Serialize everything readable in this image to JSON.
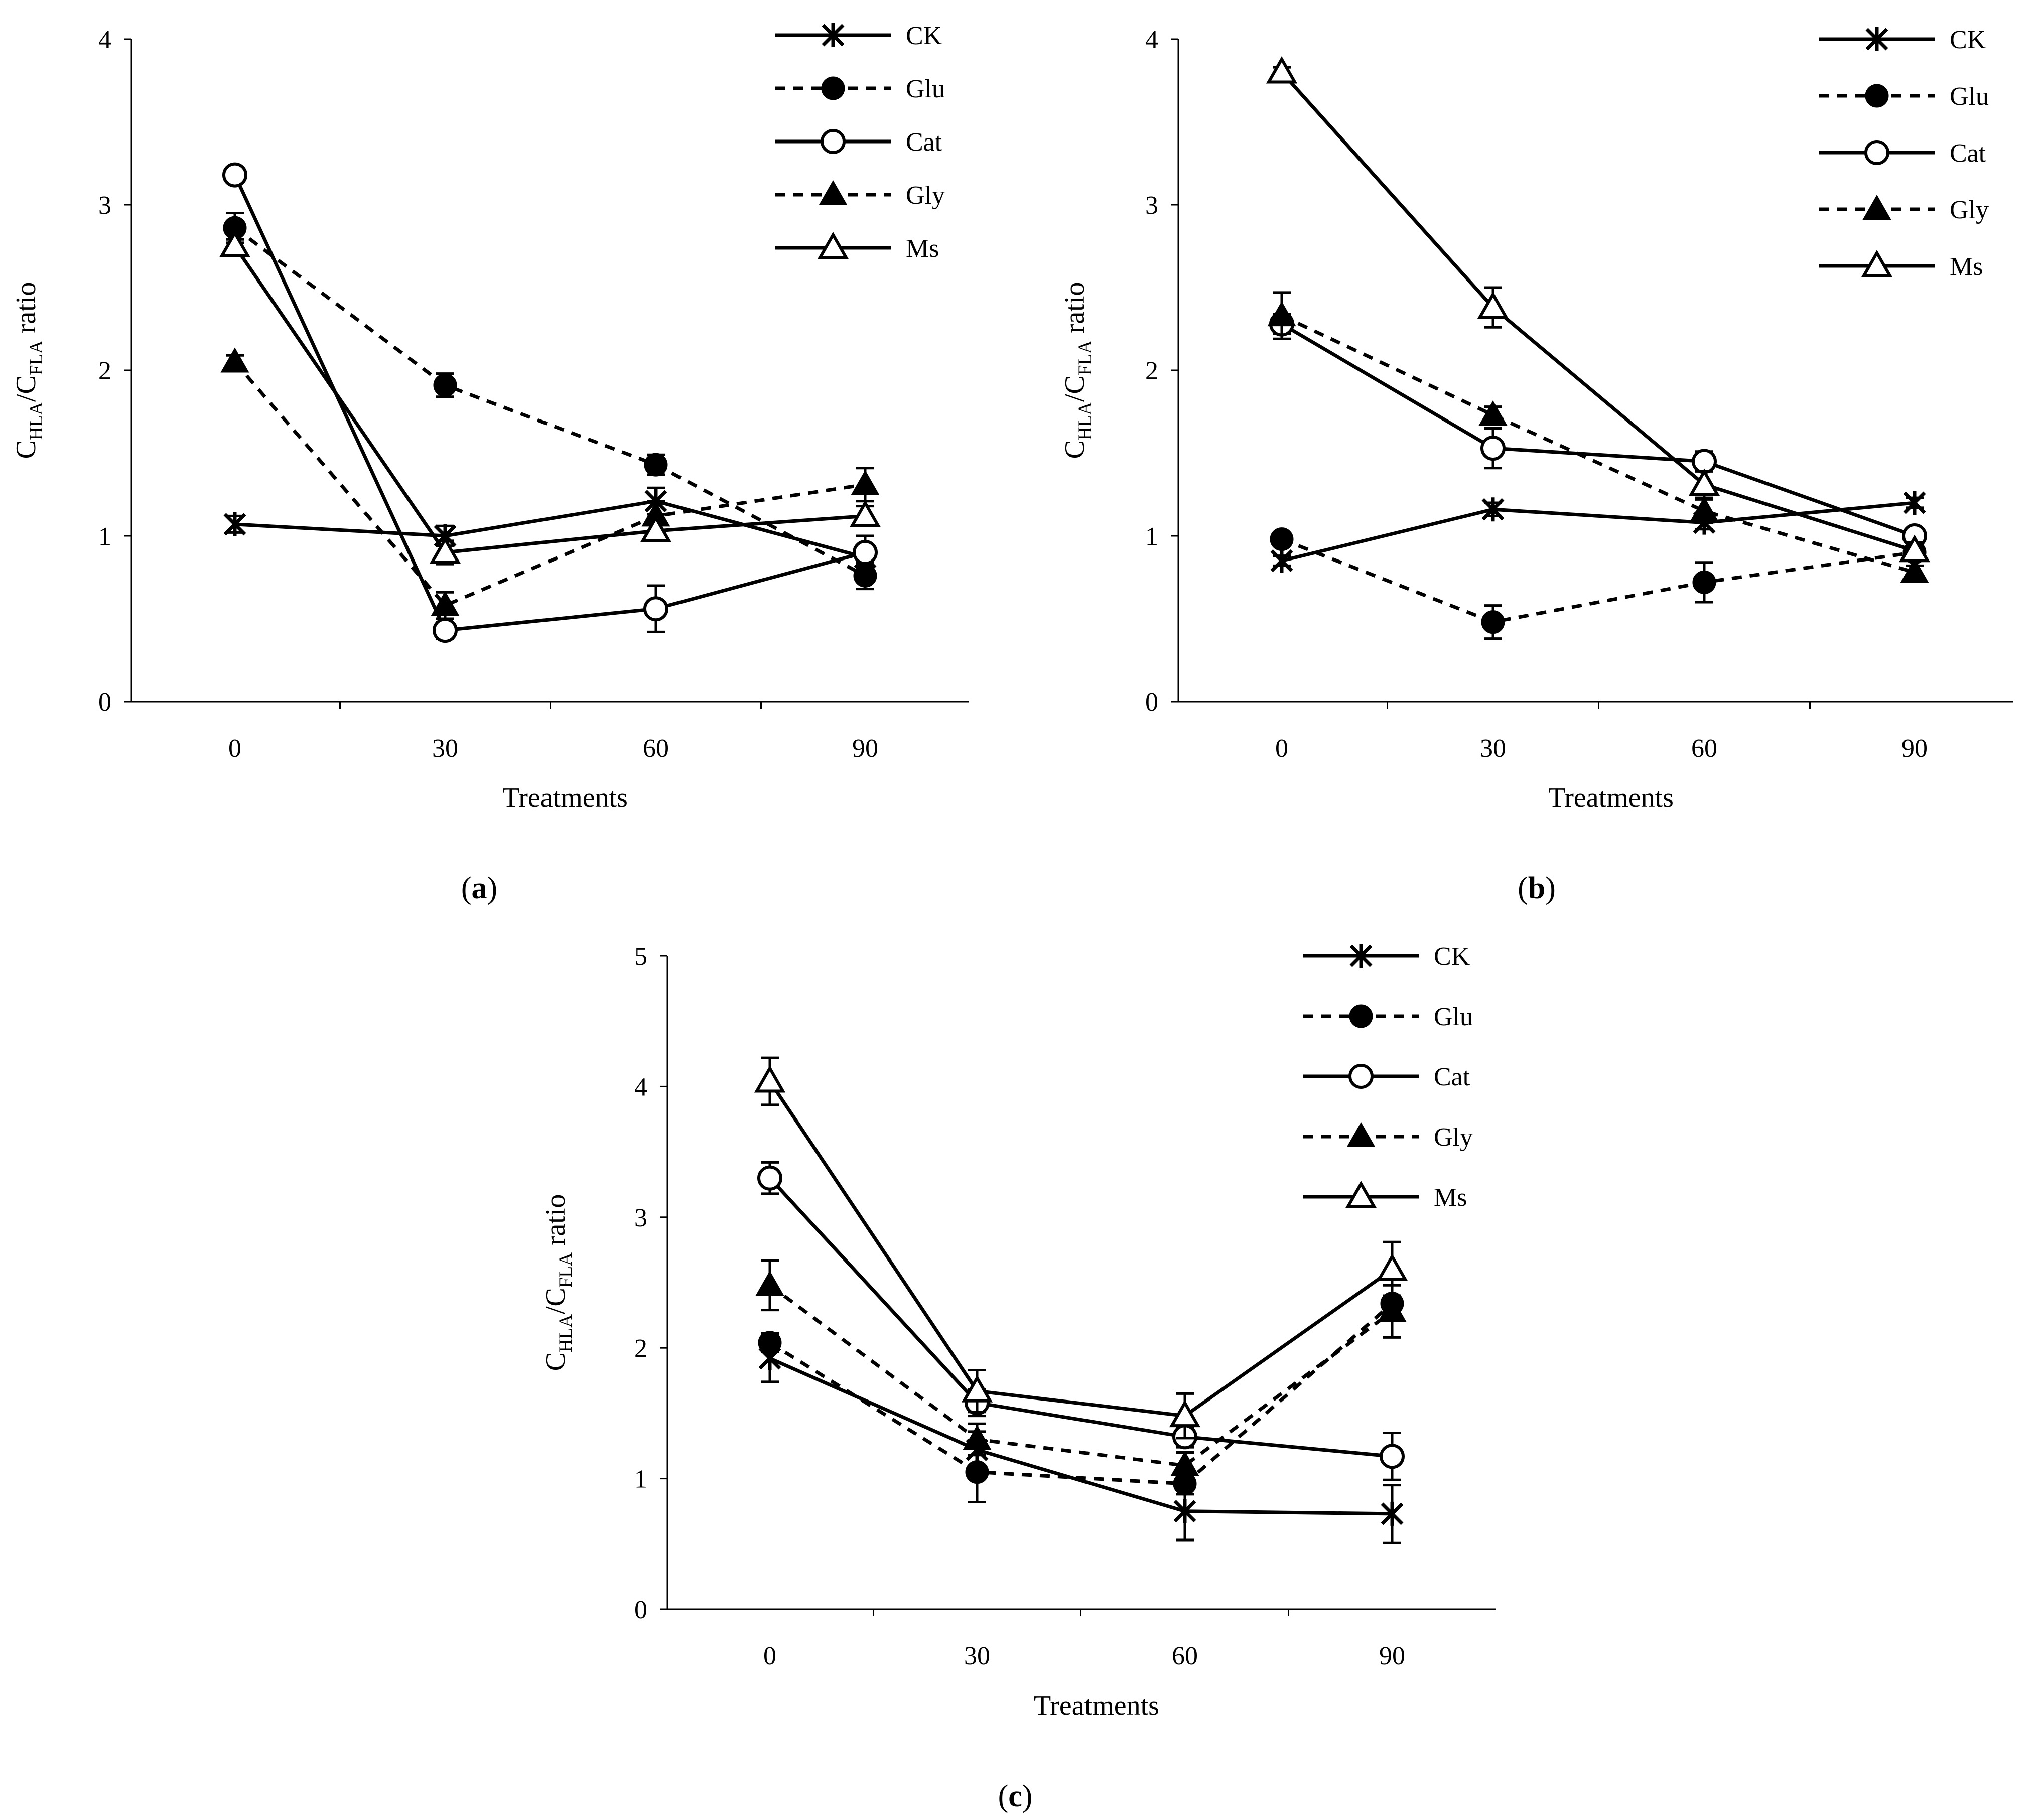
{
  "chart_data": [
    {
      "panel": "a",
      "type": "line",
      "label": "(a)",
      "xlabel": "Treatments",
      "ylabel": {
        "base1": "C",
        "sub1": "HLA",
        "mid": "/C",
        "sub2": "FLA",
        "rest": " ratio"
      },
      "categories": [
        "0",
        "30",
        "60",
        "90"
      ],
      "ylim": [
        0,
        4
      ],
      "yticks": [
        0,
        1,
        2,
        3,
        4
      ],
      "series": [
        {
          "name": "CK",
          "marker": "star",
          "dash": false,
          "values": [
            1.07,
            1.0,
            1.21,
            0.87
          ],
          "errors": [
            0.05,
            0.06,
            0.08,
            0.04
          ]
        },
        {
          "name": "Glu",
          "marker": "circle-filled",
          "dash": true,
          "values": [
            2.86,
            1.91,
            1.43,
            0.76
          ],
          "errors": [
            0.09,
            0.07,
            0.06,
            0.08
          ]
        },
        {
          "name": "Cat",
          "marker": "circle-open",
          "dash": false,
          "values": [
            3.18,
            0.43,
            0.56,
            0.9
          ],
          "errors": [
            0.03,
            0.05,
            0.14,
            0.1
          ]
        },
        {
          "name": "Gly",
          "marker": "triangle-filled",
          "dash": true,
          "values": [
            2.05,
            0.58,
            1.12,
            1.31
          ],
          "errors": [
            0.04,
            0.08,
            0.09,
            0.1
          ]
        },
        {
          "name": "Ms",
          "marker": "triangle-open",
          "dash": false,
          "values": [
            2.75,
            0.9,
            1.03,
            1.12
          ],
          "errors": [
            0.04,
            0.07,
            0.05,
            0.06
          ]
        }
      ]
    },
    {
      "panel": "b",
      "type": "line",
      "label": "(b)",
      "xlabel": "Treatments",
      "ylabel": {
        "base1": "C",
        "sub1": "HLA",
        "mid": "/C",
        "sub2": "FLA",
        "rest": " ratio"
      },
      "categories": [
        "0",
        "30",
        "60",
        "90"
      ],
      "ylim": [
        0,
        4
      ],
      "yticks": [
        0,
        1,
        2,
        3,
        4
      ],
      "series": [
        {
          "name": "CK",
          "marker": "star",
          "dash": false,
          "values": [
            0.85,
            1.16,
            1.08,
            1.2
          ],
          "errors": [
            0.03,
            0.04,
            0.04,
            0.03
          ]
        },
        {
          "name": "Glu",
          "marker": "circle-filled",
          "dash": true,
          "values": [
            0.98,
            0.48,
            0.72,
            0.9
          ],
          "errors": [
            0.03,
            0.1,
            0.12,
            0.04
          ]
        },
        {
          "name": "Cat",
          "marker": "circle-open",
          "dash": false,
          "values": [
            2.28,
            1.53,
            1.45,
            1.0
          ],
          "errors": [
            0.06,
            0.12,
            0.06,
            0.04
          ]
        },
        {
          "name": "Gly",
          "marker": "triangle-filled",
          "dash": true,
          "values": [
            2.33,
            1.73,
            1.15,
            0.78
          ],
          "errors": [
            0.14,
            0.05,
            0.07,
            0.04
          ]
        },
        {
          "name": "Ms",
          "marker": "triangle-open",
          "dash": false,
          "values": [
            3.8,
            2.38,
            1.31,
            0.91
          ],
          "errors": [
            0.03,
            0.12,
            0.08,
            0.05
          ]
        }
      ]
    },
    {
      "panel": "c",
      "type": "line",
      "label": "(c)",
      "xlabel": "Treatments",
      "ylabel": {
        "base1": "C",
        "sub1": "HLA",
        "mid": "/C",
        "sub2": "FLA",
        "rest": " ratio"
      },
      "categories": [
        "0",
        "30",
        "60",
        "90"
      ],
      "ylim": [
        0,
        5
      ],
      "yticks": [
        0,
        1,
        2,
        3,
        4,
        5
      ],
      "series": [
        {
          "name": "CK",
          "marker": "star",
          "dash": false,
          "values": [
            1.92,
            1.22,
            0.75,
            0.73
          ],
          "errors": [
            0.18,
            0.14,
            0.22,
            0.22
          ]
        },
        {
          "name": "Glu",
          "marker": "circle-filled",
          "dash": true,
          "values": [
            2.04,
            1.05,
            0.96,
            2.34
          ],
          "errors": [
            0.07,
            0.23,
            0.08,
            0.06
          ]
        },
        {
          "name": "Cat",
          "marker": "circle-open",
          "dash": false,
          "values": [
            3.3,
            1.58,
            1.32,
            1.17
          ],
          "errors": [
            0.12,
            0.1,
            0.08,
            0.18
          ]
        },
        {
          "name": "Gly",
          "marker": "triangle-filled",
          "dash": true,
          "values": [
            2.48,
            1.3,
            1.1,
            2.28
          ],
          "errors": [
            0.19,
            0.12,
            0.1,
            0.2
          ]
        },
        {
          "name": "Ms",
          "marker": "triangle-open",
          "dash": false,
          "values": [
            4.04,
            1.67,
            1.48,
            2.6
          ],
          "errors": [
            0.18,
            0.16,
            0.17,
            0.21
          ]
        }
      ]
    }
  ]
}
